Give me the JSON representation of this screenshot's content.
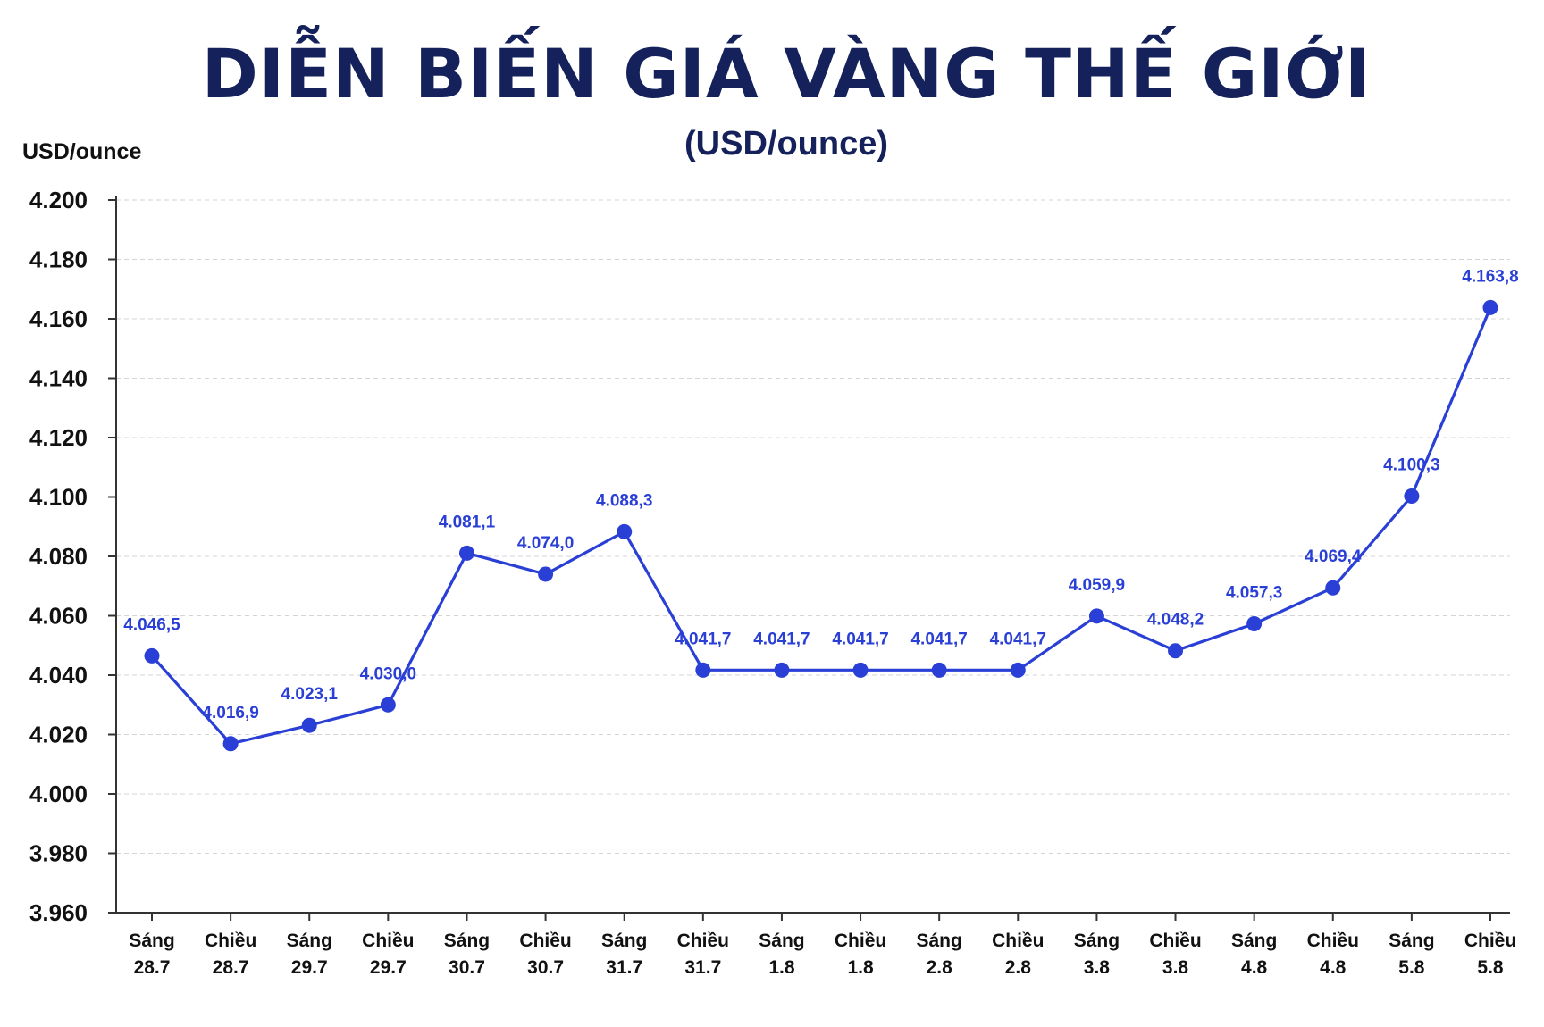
{
  "chart_data": {
    "type": "line",
    "title": "DIỄN BIẾN GIÁ VÀNG THẾ GIỚI",
    "subtitle": "(USD/ounce)",
    "ylabel": "USD/ounce",
    "xlabel": "",
    "ylim": [
      3960,
      4200
    ],
    "yticks": [
      "3.960",
      "3.980",
      "4.000",
      "4.020",
      "4.040",
      "4.060",
      "4.080",
      "4.100",
      "4.120",
      "4.140",
      "4.160",
      "4.180",
      "4.200"
    ],
    "grid": true,
    "line_color": "#2a3fd6",
    "categories": [
      [
        "Sáng",
        "28.7"
      ],
      [
        "Chiều",
        "28.7"
      ],
      [
        "Sáng",
        "29.7"
      ],
      [
        "Chiều",
        "29.7"
      ],
      [
        "Sáng",
        "30.7"
      ],
      [
        "Chiều",
        "30.7"
      ],
      [
        "Sáng",
        "31.7"
      ],
      [
        "Chiều",
        "31.7"
      ],
      [
        "Sáng",
        "1.8"
      ],
      [
        "Chiều",
        "1.8"
      ],
      [
        "Sáng",
        "2.8"
      ],
      [
        "Chiều",
        "2.8"
      ],
      [
        "Sáng",
        "3.8"
      ],
      [
        "Chiều",
        "3.8"
      ],
      [
        "Sáng",
        "4.8"
      ],
      [
        "Chiều",
        "4.8"
      ],
      [
        "Sáng",
        "5.8"
      ],
      [
        "Chiều",
        "5.8"
      ]
    ],
    "values": [
      4046.5,
      4016.9,
      4023.1,
      4030.0,
      4081.1,
      4074.0,
      4088.3,
      4041.7,
      4041.7,
      4041.7,
      4041.7,
      4041.7,
      4059.9,
      4048.2,
      4057.3,
      4069.4,
      4100.3,
      4163.8
    ],
    "data_labels": [
      "4.046,5",
      "4.016,9",
      "4.023,1",
      "4.030,0",
      "4.081,1",
      "4.074,0",
      "4.088,3",
      "4.041,7",
      "4.041,7",
      "4.041,7",
      "4.041,7",
      "4.041,7",
      "4.059,9",
      "4.048,2",
      "4.057,3",
      "4.069,4",
      "4.100,3",
      "4.163,8"
    ]
  }
}
